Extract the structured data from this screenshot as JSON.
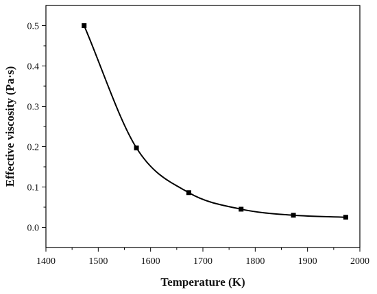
{
  "chart_data": {
    "type": "line",
    "title": "",
    "xlabel": "Temperature (K)",
    "ylabel": "Effective viscosity (Pa·s)",
    "xlim": [
      1400,
      2000
    ],
    "ylim": [
      -0.05,
      0.55
    ],
    "xticks": [
      1400,
      1500,
      1600,
      1700,
      1800,
      1900,
      2000
    ],
    "yticks": [
      0.0,
      0.1,
      0.2,
      0.3,
      0.4,
      0.5
    ],
    "ytick_labels": [
      "0.0",
      "0.1",
      "0.2",
      "0.3",
      "0.4",
      "0.5"
    ],
    "grid": false,
    "legend": "none",
    "series": [
      {
        "marker": "square",
        "color": "#000000",
        "x": [
          1473,
          1573,
          1673,
          1773,
          1873,
          1973
        ],
        "y": [
          0.5,
          0.197,
          0.086,
          0.045,
          0.03,
          0.025
        ]
      }
    ]
  }
}
